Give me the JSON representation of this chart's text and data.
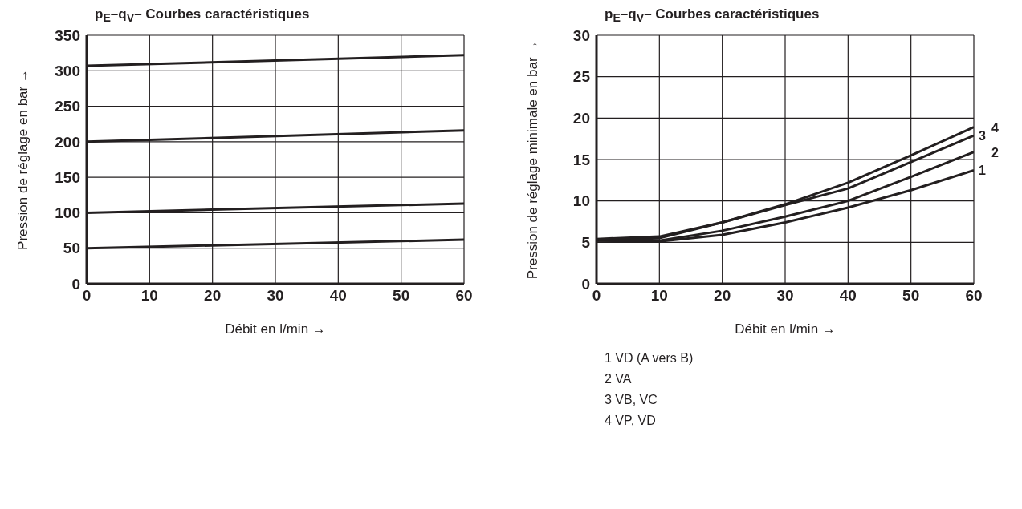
{
  "chart_data": [
    {
      "type": "line",
      "title": "p$_{E}$–q$_{V}$– Courbes caractéristiques",
      "xlabel": "Débit en l/min →",
      "ylabel": "Pression de réglage en bar →",
      "xlim": [
        0,
        60
      ],
      "xticks": [
        0,
        10,
        20,
        30,
        40,
        50,
        60
      ],
      "ylim": [
        0,
        350
      ],
      "yticks": [
        0,
        50,
        100,
        150,
        200,
        250,
        300,
        350
      ],
      "grid": true,
      "marker": "none",
      "line_style": "solid",
      "series": [
        {
          "color": "#231f20",
          "x": [
            0,
            60
          ],
          "values": [
            307,
            322
          ]
        },
        {
          "color": "#231f20",
          "x": [
            0,
            60
          ],
          "values": [
            200,
            216
          ]
        },
        {
          "color": "#231f20",
          "x": [
            0,
            60
          ],
          "values": [
            100,
            113
          ]
        },
        {
          "color": "#231f20",
          "x": [
            0,
            60
          ],
          "values": [
            50,
            62
          ]
        }
      ]
    },
    {
      "type": "line",
      "title": "p$_{E}$–q$_{V}$– Courbes caractéristiques",
      "xlabel": "Débit en l/min →",
      "ylabel": "Pression de réglage minimale en bar →",
      "xlim": [
        0,
        60
      ],
      "xticks": [
        0,
        10,
        20,
        30,
        40,
        50,
        60
      ],
      "ylim": [
        0,
        30
      ],
      "yticks": [
        0,
        5,
        10,
        15,
        20,
        25,
        30
      ],
      "grid": true,
      "marker": "none",
      "line_style": "solid",
      "annotations": [
        "1  VD (A vers B)",
        "2  VA",
        "3  VB, VC",
        "4  VP, VD"
      ],
      "series": [
        {
          "name": "1",
          "color": "#231f20",
          "x": [
            0,
            10,
            20,
            30,
            40,
            50,
            60
          ],
          "values": [
            5.2,
            5.1,
            5.9,
            7.4,
            9.2,
            11.3,
            13.7
          ]
        },
        {
          "name": "2",
          "color": "#231f20",
          "x": [
            0,
            10,
            20,
            30,
            40,
            50,
            60
          ],
          "values": [
            5.2,
            5.2,
            6.4,
            8.1,
            10.0,
            12.9,
            15.9
          ]
        },
        {
          "name": "3",
          "color": "#231f20",
          "x": [
            0,
            10,
            20,
            30,
            40,
            50,
            60
          ],
          "values": [
            5.3,
            5.5,
            7.4,
            9.5,
            11.5,
            14.7,
            17.9
          ]
        },
        {
          "name": "4",
          "color": "#231f20",
          "x": [
            0,
            10,
            20,
            30,
            40,
            50,
            60
          ],
          "values": [
            5.4,
            5.7,
            7.4,
            9.6,
            12.2,
            15.5,
            18.9
          ]
        }
      ]
    }
  ]
}
